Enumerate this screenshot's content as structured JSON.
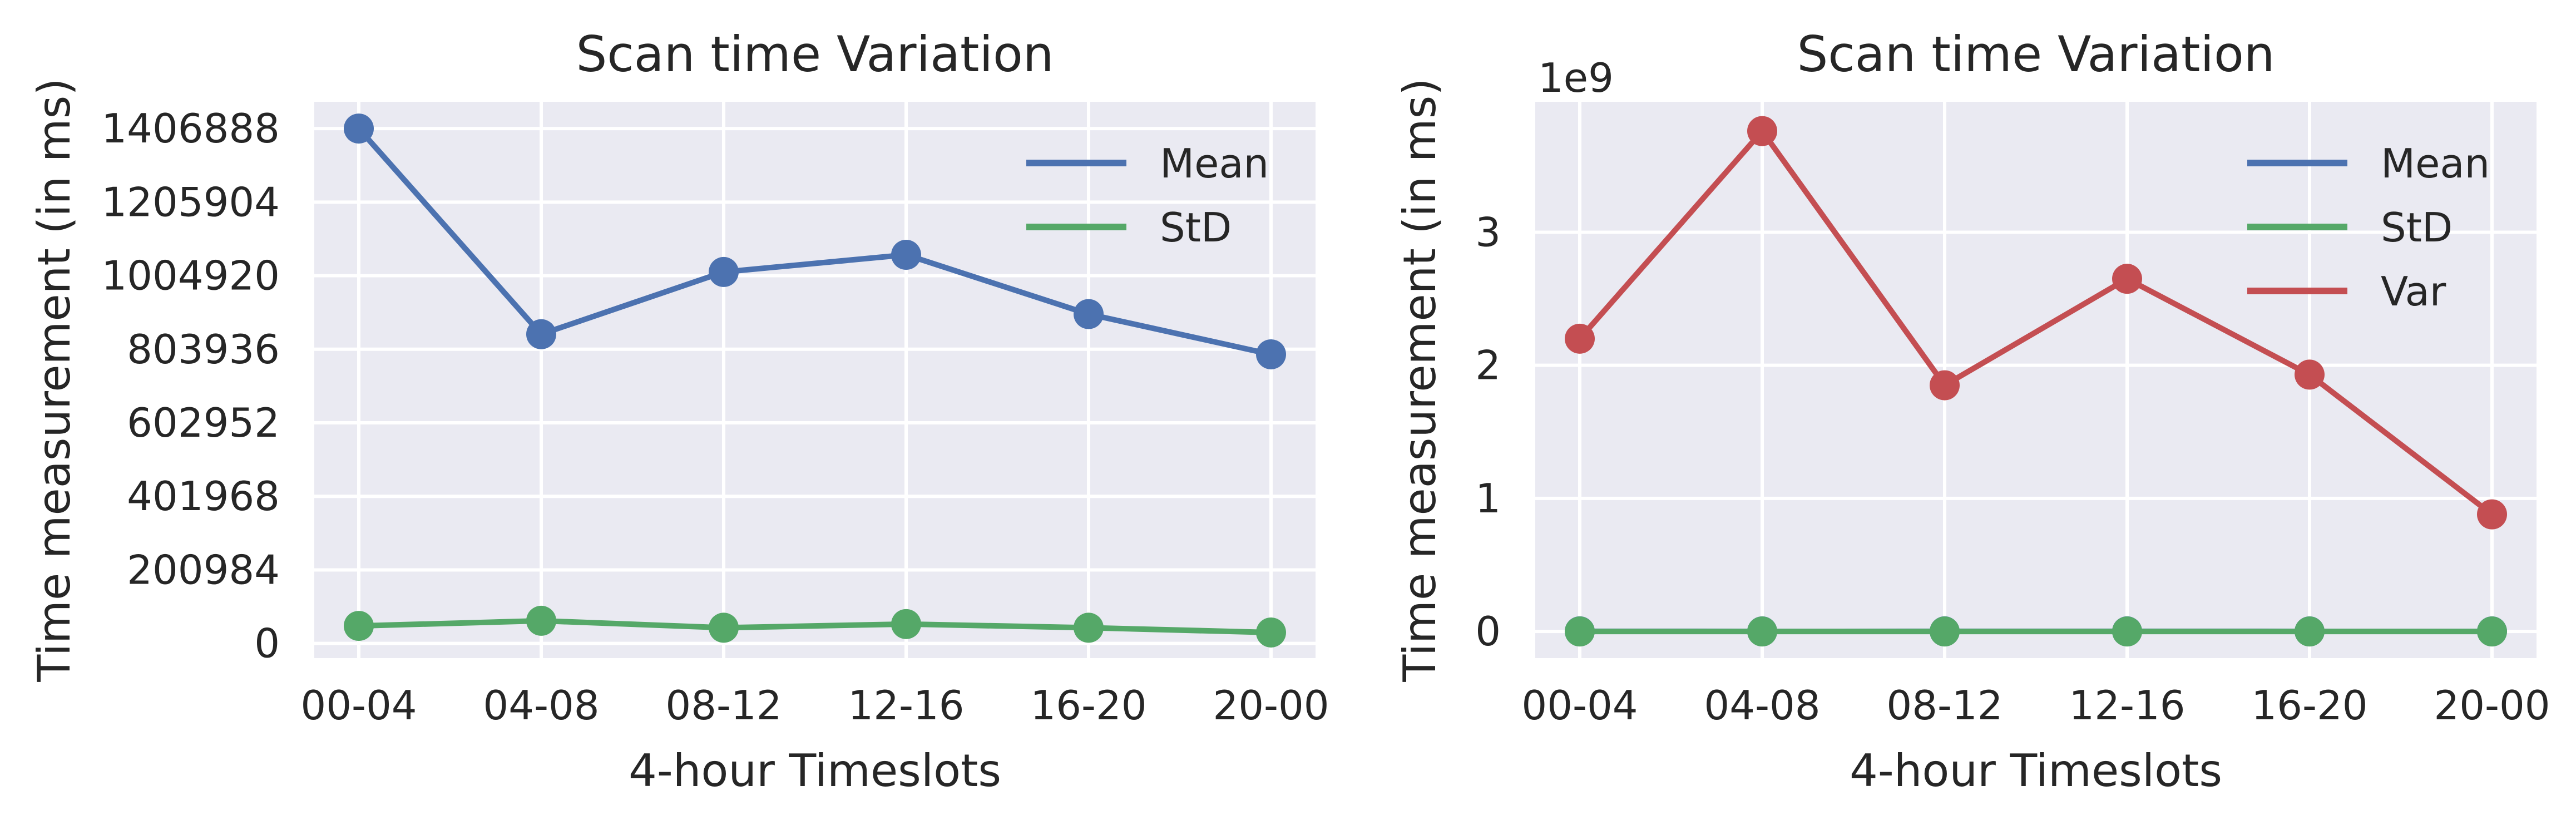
{
  "chart_data": [
    {
      "type": "line",
      "title": "Scan time Variation",
      "xlabel": "4-hour Timeslots",
      "ylabel": "Time measurement (in ms)",
      "categories": [
        "00-04",
        "04-08",
        "08-12",
        "12-16",
        "16-20",
        "20-00"
      ],
      "ylim": [
        -40000,
        1480000
      ],
      "yticks": [
        0,
        200984,
        401968,
        602952,
        803936,
        1004920,
        1205904,
        1406888
      ],
      "ytick_labels": [
        "0",
        "200984",
        "401968",
        "602952",
        "803936",
        "1004920",
        "1205904",
        "1406888"
      ],
      "grid": true,
      "legend_position": "top-right",
      "series": [
        {
          "name": "Mean",
          "color": "#4C72B0",
          "values": [
            1406888,
            845000,
            1015000,
            1062000,
            900000,
            790000
          ]
        },
        {
          "name": "StD",
          "color": "#55A868",
          "values": [
            48000,
            62000,
            43000,
            53000,
            43000,
            30000
          ]
        }
      ]
    },
    {
      "type": "line",
      "title": "Scan time Variation",
      "xlabel": "4-hour Timeslots",
      "ylabel": "Time measurement (in ms)",
      "y_offset_label": "1e9",
      "categories": [
        "00-04",
        "04-08",
        "08-12",
        "12-16",
        "16-20",
        "20-00"
      ],
      "ylim": [
        -0.2,
        3.98
      ],
      "yticks": [
        0,
        1,
        2,
        3
      ],
      "ytick_labels": [
        "0",
        "1",
        "2",
        "3"
      ],
      "grid": true,
      "legend_position": "top-right",
      "series": [
        {
          "name": "Mean",
          "color": "#4C72B0",
          "values": [
            0.0014,
            0.0008,
            0.001,
            0.0011,
            0.0009,
            0.0008
          ]
        },
        {
          "name": "StD",
          "color": "#55A868",
          "values": [
            5e-05,
            6e-05,
            4e-05,
            5e-05,
            4e-05,
            3e-05
          ]
        },
        {
          "name": "Var",
          "color": "#C44E52",
          "values": [
            2.2,
            3.76,
            1.85,
            2.65,
            1.93,
            0.88
          ]
        }
      ]
    }
  ]
}
